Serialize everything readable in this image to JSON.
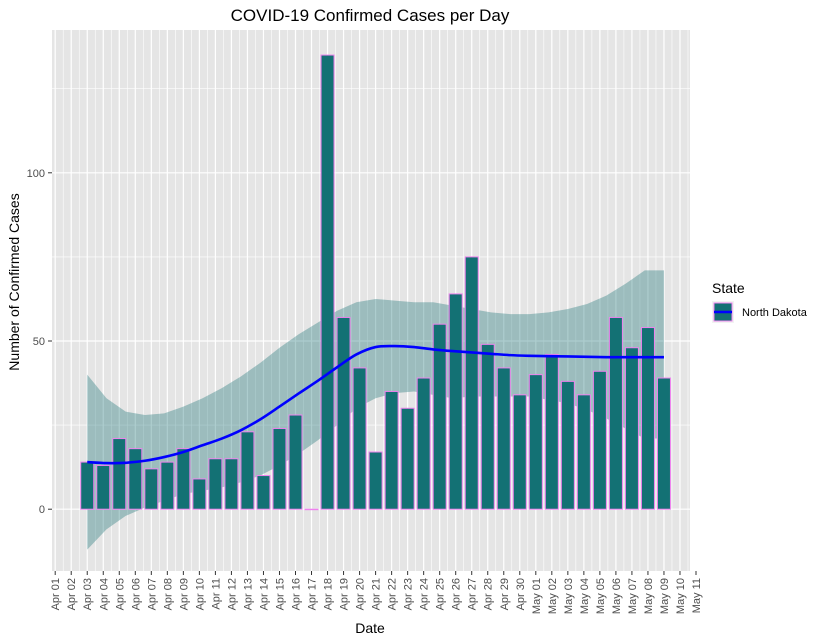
{
  "chart_data": {
    "type": "bar",
    "title": "COVID-19 Confirmed Cases per Day",
    "xlabel": "Date",
    "ylabel": "Number of Confirmed Cases",
    "ylim": [
      -20,
      141
    ],
    "yticks": [
      0,
      50,
      100
    ],
    "x_tick_labels": [
      "Apr 01",
      "Apr 02",
      "Apr 03",
      "Apr 04",
      "Apr 05",
      "Apr 06",
      "Apr 07",
      "Apr 08",
      "Apr 09",
      "Apr 10",
      "Apr 11",
      "Apr 12",
      "Apr 13",
      "Apr 14",
      "Apr 15",
      "Apr 16",
      "Apr 17",
      "Apr 18",
      "Apr 19",
      "Apr 20",
      "Apr 21",
      "Apr 22",
      "Apr 23",
      "Apr 24",
      "Apr 25",
      "Apr 26",
      "Apr 27",
      "Apr 28",
      "Apr 29",
      "Apr 30",
      "May 01",
      "May 02",
      "May 03",
      "May 04",
      "May 05",
      "May 06",
      "May 07",
      "May 08",
      "May 09",
      "May 10",
      "May 11"
    ],
    "categories": [
      "Apr 03",
      "Apr 04",
      "Apr 05",
      "Apr 06",
      "Apr 07",
      "Apr 08",
      "Apr 09",
      "Apr 10",
      "Apr 11",
      "Apr 12",
      "Apr 13",
      "Apr 14",
      "Apr 15",
      "Apr 16",
      "Apr 17",
      "Apr 18",
      "Apr 19",
      "Apr 20",
      "Apr 21",
      "Apr 22",
      "Apr 23",
      "Apr 24",
      "Apr 25",
      "Apr 26",
      "Apr 27",
      "Apr 28",
      "Apr 29",
      "Apr 30",
      "May 01",
      "May 02",
      "May 03",
      "May 04",
      "May 05",
      "May 06",
      "May 07",
      "May 08",
      "May 09"
    ],
    "series": [
      {
        "name": "North Dakota",
        "values": [
          14,
          13,
          21,
          18,
          12,
          14,
          18,
          9,
          15,
          15,
          23,
          10,
          24,
          28,
          0,
          135,
          57,
          42,
          17,
          35,
          30,
          39,
          55,
          64,
          75,
          49,
          42,
          34,
          40,
          46,
          38,
          34,
          41,
          57,
          48,
          54,
          39
        ]
      }
    ],
    "smooth": {
      "method": "loess",
      "fit": [
        14,
        13.7,
        13.8,
        14.4,
        15.5,
        17,
        19,
        21,
        23.5,
        26.7,
        30.5,
        34.4,
        38.2,
        42.2,
        46,
        48.2,
        48.5,
        48.2,
        47.5,
        47,
        46.6,
        46.2,
        45.8,
        45.6,
        45.5,
        45.4,
        45.3,
        45.2,
        45.2,
        45.2,
        45.2
      ],
      "upper": [
        40,
        33,
        29,
        28,
        28.5,
        30.5,
        33,
        36,
        39.5,
        43.5,
        48,
        52,
        55.5,
        59,
        61.5,
        62.5,
        62,
        61.5,
        61.5,
        60.5,
        59.5,
        58.5,
        58,
        58,
        58.5,
        59.5,
        61,
        63.5,
        67,
        71,
        71
      ],
      "lower": [
        -12,
        -6,
        -2,
        0.5,
        2.5,
        4.5,
        5.5,
        6.5,
        8,
        10,
        13,
        16.5,
        20.5,
        25,
        30,
        33,
        34.5,
        35,
        34,
        33,
        33.5,
        33.5,
        33.5,
        33.5,
        32.5,
        31.5,
        29.5,
        27,
        24,
        21,
        21
      ]
    },
    "legend": {
      "title": "State",
      "label": "North Dakota",
      "position": "right"
    },
    "colors": {
      "bar_fill": "#137174",
      "bar_outline": "#ee82ee",
      "smooth_line": "#0000ff",
      "ribbon": "#137174",
      "panel": "#e5e5e5",
      "grid": "#ffffff"
    },
    "grid": true
  }
}
